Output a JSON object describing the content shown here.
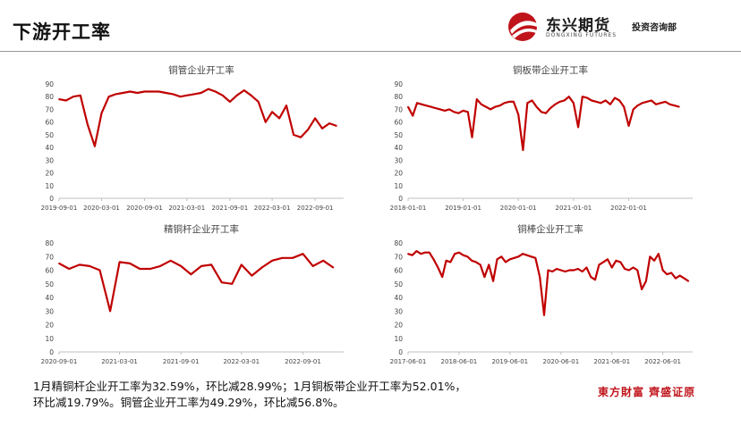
{
  "page_title": "下游开工率",
  "logo": {
    "name": "东兴期货",
    "name_en": "DONGXING FUTURES",
    "dept": "投资咨询部",
    "brand_color": "#c0141b"
  },
  "summary": {
    "line1": "1月精铜杆企业开工率为32.59%，环比减28.99%；1月铜板带企业开工率为52.01%，",
    "line2": "环比减19.79%。铜管企业开工率为49.29%，环比减56.8%。"
  },
  "watermark": "東方財富 齊盛证原",
  "chart_data": [
    {
      "type": "line",
      "title": "铜管企业开工率",
      "color": "#c00000",
      "ylim": [
        0,
        90
      ],
      "yticks": [
        0,
        10,
        20,
        30,
        40,
        50,
        60,
        70,
        80,
        90
      ],
      "xlim": [
        "2019-09-01",
        "2023-01-01"
      ],
      "xticks": [
        "2019-09-01",
        "2020-03-01",
        "2020-09-01",
        "2021-03-01",
        "2021-09-01",
        "2022-03-01",
        "2022-09-01"
      ],
      "grid": false,
      "series": [
        {
          "values": [
            [
              "2019-09-01",
              78
            ],
            [
              "2019-10-01",
              77
            ],
            [
              "2019-11-01",
              80
            ],
            [
              "2019-12-01",
              81
            ],
            [
              "2020-01-01",
              58
            ],
            [
              "2020-02-01",
              41
            ],
            [
              "2020-03-01",
              67
            ],
            [
              "2020-04-01",
              80
            ],
            [
              "2020-05-01",
              82
            ],
            [
              "2020-06-01",
              83
            ],
            [
              "2020-07-01",
              84
            ],
            [
              "2020-08-01",
              83
            ],
            [
              "2020-09-01",
              84
            ],
            [
              "2020-10-01",
              84
            ],
            [
              "2020-11-01",
              84
            ],
            [
              "2020-12-01",
              83
            ],
            [
              "2021-01-01",
              82
            ],
            [
              "2021-02-01",
              80
            ],
            [
              "2021-03-01",
              81
            ],
            [
              "2021-04-01",
              82
            ],
            [
              "2021-05-01",
              83
            ],
            [
              "2021-06-01",
              86
            ],
            [
              "2021-07-01",
              84
            ],
            [
              "2021-08-01",
              81
            ],
            [
              "2021-09-01",
              76
            ],
            [
              "2021-10-01",
              81
            ],
            [
              "2021-11-01",
              85
            ],
            [
              "2021-12-01",
              81
            ],
            [
              "2022-01-01",
              76
            ],
            [
              "2022-02-01",
              60
            ],
            [
              "2022-03-01",
              68
            ],
            [
              "2022-04-01",
              63
            ],
            [
              "2022-05-01",
              73
            ],
            [
              "2022-06-01",
              50
            ],
            [
              "2022-07-01",
              48
            ],
            [
              "2022-08-01",
              54
            ],
            [
              "2022-09-01",
              63
            ],
            [
              "2022-10-01",
              55
            ],
            [
              "2022-11-01",
              59
            ],
            [
              "2022-12-01",
              57
            ]
          ]
        }
      ]
    },
    {
      "type": "line",
      "title": "铜板带企业开工率",
      "color": "#c00000",
      "ylim": [
        0,
        90
      ],
      "yticks": [
        0,
        10,
        20,
        30,
        40,
        50,
        60,
        70,
        80,
        90
      ],
      "xlim": [
        "2018-01-01",
        "2023-03-01"
      ],
      "xticks": [
        "2018-01-01",
        "2019-01-01",
        "2020-01-01",
        "2021-01-01",
        "2022-01-01"
      ],
      "grid": false,
      "series": [
        {
          "values": [
            [
              "2018-01-01",
              72
            ],
            [
              "2018-02-01",
              65
            ],
            [
              "2018-03-01",
              75
            ],
            [
              "2018-04-01",
              74
            ],
            [
              "2018-05-01",
              73
            ],
            [
              "2018-06-01",
              72
            ],
            [
              "2018-07-01",
              71
            ],
            [
              "2018-08-01",
              70
            ],
            [
              "2018-09-01",
              69
            ],
            [
              "2018-10-01",
              70
            ],
            [
              "2018-11-01",
              68
            ],
            [
              "2018-12-01",
              67
            ],
            [
              "2019-01-01",
              69
            ],
            [
              "2019-02-01",
              68
            ],
            [
              "2019-03-01",
              48
            ],
            [
              "2019-04-01",
              78
            ],
            [
              "2019-05-01",
              74
            ],
            [
              "2019-06-01",
              72
            ],
            [
              "2019-07-01",
              70
            ],
            [
              "2019-08-01",
              72
            ],
            [
              "2019-09-01",
              73
            ],
            [
              "2019-10-01",
              75
            ],
            [
              "2019-11-01",
              76
            ],
            [
              "2019-12-01",
              76
            ],
            [
              "2020-01-01",
              66
            ],
            [
              "2020-02-01",
              38
            ],
            [
              "2020-03-01",
              75
            ],
            [
              "2020-04-01",
              77
            ],
            [
              "2020-05-01",
              72
            ],
            [
              "2020-06-01",
              68
            ],
            [
              "2020-07-01",
              67
            ],
            [
              "2020-08-01",
              71
            ],
            [
              "2020-09-01",
              74
            ],
            [
              "2020-10-01",
              76
            ],
            [
              "2020-11-01",
              77
            ],
            [
              "2020-12-01",
              80
            ],
            [
              "2021-01-01",
              75
            ],
            [
              "2021-02-01",
              56
            ],
            [
              "2021-03-01",
              80
            ],
            [
              "2021-04-01",
              79
            ],
            [
              "2021-05-01",
              77
            ],
            [
              "2021-06-01",
              76
            ],
            [
              "2021-07-01",
              75
            ],
            [
              "2021-08-01",
              77
            ],
            [
              "2021-09-01",
              74
            ],
            [
              "2021-10-01",
              79
            ],
            [
              "2021-11-01",
              77
            ],
            [
              "2021-12-01",
              72
            ],
            [
              "2022-01-01",
              57
            ],
            [
              "2022-02-01",
              70
            ],
            [
              "2022-03-01",
              73
            ],
            [
              "2022-04-01",
              75
            ],
            [
              "2022-05-01",
              76
            ],
            [
              "2022-06-01",
              77
            ],
            [
              "2022-07-01",
              74
            ],
            [
              "2022-08-01",
              75
            ],
            [
              "2022-09-01",
              76
            ],
            [
              "2022-10-01",
              74
            ],
            [
              "2022-11-01",
              73
            ],
            [
              "2022-12-01",
              72
            ]
          ]
        }
      ]
    },
    {
      "type": "line",
      "title": "精铜杆企业开工率",
      "color": "#c00000",
      "ylim": [
        0,
        80
      ],
      "yticks": [
        0,
        10,
        20,
        30,
        40,
        50,
        60,
        70,
        80
      ],
      "xlim": [
        "2020-09-01",
        "2023-01-01"
      ],
      "xticks": [
        "2020-09-01",
        "2021-03-01",
        "2021-09-01",
        "2022-03-01",
        "2022-09-01"
      ],
      "grid": false,
      "series": [
        {
          "values": [
            [
              "2020-09-01",
              65
            ],
            [
              "2020-10-01",
              61
            ],
            [
              "2020-11-01",
              64
            ],
            [
              "2020-12-01",
              63
            ],
            [
              "2021-01-01",
              60
            ],
            [
              "2021-02-01",
              30
            ],
            [
              "2021-03-01",
              66
            ],
            [
              "2021-04-01",
              65
            ],
            [
              "2021-05-01",
              61
            ],
            [
              "2021-06-01",
              61
            ],
            [
              "2021-07-01",
              63
            ],
            [
              "2021-08-01",
              67
            ],
            [
              "2021-09-01",
              63
            ],
            [
              "2021-10-01",
              57
            ],
            [
              "2021-11-01",
              63
            ],
            [
              "2021-12-01",
              64
            ],
            [
              "2022-01-01",
              51
            ],
            [
              "2022-02-01",
              50
            ],
            [
              "2022-03-01",
              64
            ],
            [
              "2022-04-01",
              56
            ],
            [
              "2022-05-01",
              62
            ],
            [
              "2022-06-01",
              67
            ],
            [
              "2022-07-01",
              69
            ],
            [
              "2022-08-01",
              69
            ],
            [
              "2022-09-01",
              72
            ],
            [
              "2022-10-01",
              63
            ],
            [
              "2022-11-01",
              67
            ],
            [
              "2022-12-01",
              62
            ]
          ]
        }
      ]
    },
    {
      "type": "line",
      "title": "铜棒企业开工率",
      "color": "#c00000",
      "ylim": [
        0,
        80
      ],
      "yticks": [
        0,
        10,
        20,
        30,
        40,
        50,
        60,
        70,
        80
      ],
      "xlim": [
        "2017-06-01",
        "2023-01-01"
      ],
      "xticks": [
        "2017-06-01",
        "2018-06-01",
        "2019-06-01",
        "2020-06-01",
        "2021-06-01",
        "2022-06-01"
      ],
      "grid": false,
      "series": [
        {
          "values": [
            [
              "2017-06-01",
              72
            ],
            [
              "2017-07-01",
              71
            ],
            [
              "2017-08-01",
              74
            ],
            [
              "2017-09-01",
              72
            ],
            [
              "2017-10-01",
              73
            ],
            [
              "2017-11-01",
              73
            ],
            [
              "2017-12-01",
              68
            ],
            [
              "2018-01-01",
              62
            ],
            [
              "2018-02-01",
              55
            ],
            [
              "2018-03-01",
              67
            ],
            [
              "2018-04-01",
              66
            ],
            [
              "2018-05-01",
              72
            ],
            [
              "2018-06-01",
              73
            ],
            [
              "2018-07-01",
              71
            ],
            [
              "2018-08-01",
              70
            ],
            [
              "2018-09-01",
              67
            ],
            [
              "2018-10-01",
              66
            ],
            [
              "2018-11-01",
              64
            ],
            [
              "2018-12-01",
              55
            ],
            [
              "2019-01-01",
              64
            ],
            [
              "2019-02-01",
              52
            ],
            [
              "2019-03-01",
              68
            ],
            [
              "2019-04-01",
              70
            ],
            [
              "2019-05-01",
              66
            ],
            [
              "2019-06-01",
              68
            ],
            [
              "2019-07-01",
              69
            ],
            [
              "2019-08-01",
              70
            ],
            [
              "2019-09-01",
              72
            ],
            [
              "2019-10-01",
              71
            ],
            [
              "2019-11-01",
              70
            ],
            [
              "2019-12-01",
              69
            ],
            [
              "2020-01-01",
              55
            ],
            [
              "2020-02-01",
              27
            ],
            [
              "2020-03-01",
              60
            ],
            [
              "2020-04-01",
              59
            ],
            [
              "2020-05-01",
              61
            ],
            [
              "2020-06-01",
              60
            ],
            [
              "2020-07-01",
              59
            ],
            [
              "2020-08-01",
              60
            ],
            [
              "2020-09-01",
              60
            ],
            [
              "2020-10-01",
              61
            ],
            [
              "2020-11-01",
              59
            ],
            [
              "2020-12-01",
              62
            ],
            [
              "2021-01-01",
              55
            ],
            [
              "2021-02-01",
              53
            ],
            [
              "2021-03-01",
              64
            ],
            [
              "2021-04-01",
              66
            ],
            [
              "2021-05-01",
              68
            ],
            [
              "2021-06-01",
              62
            ],
            [
              "2021-07-01",
              67
            ],
            [
              "2021-08-01",
              66
            ],
            [
              "2021-09-01",
              61
            ],
            [
              "2021-10-01",
              60
            ],
            [
              "2021-11-01",
              62
            ],
            [
              "2021-12-01",
              60
            ],
            [
              "2022-01-01",
              46
            ],
            [
              "2022-02-01",
              52
            ],
            [
              "2022-03-01",
              70
            ],
            [
              "2022-04-01",
              67
            ],
            [
              "2022-05-01",
              72
            ],
            [
              "2022-06-01",
              60
            ],
            [
              "2022-07-01",
              57
            ],
            [
              "2022-08-01",
              58
            ],
            [
              "2022-09-01",
              54
            ],
            [
              "2022-10-01",
              56
            ],
            [
              "2022-11-01",
              54
            ],
            [
              "2022-12-01",
              52
            ]
          ]
        }
      ]
    }
  ]
}
